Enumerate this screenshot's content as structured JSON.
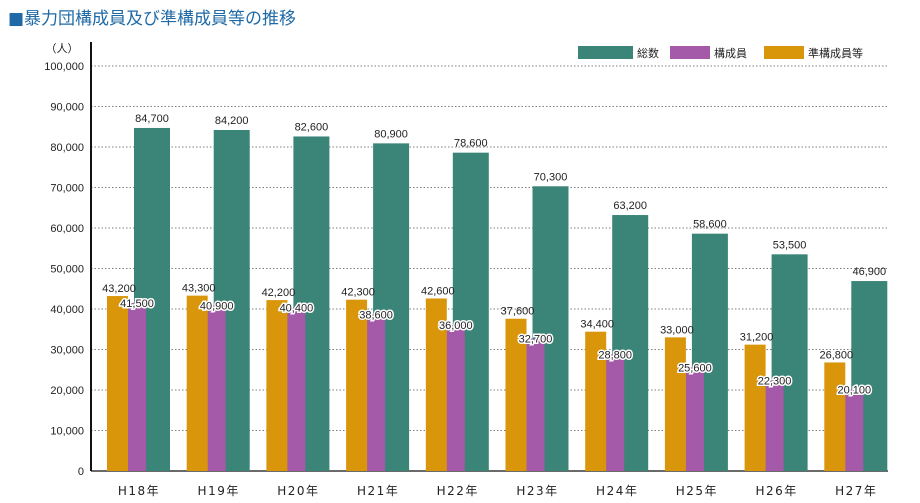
{
  "title": "■暴力団構成員及び準構成員等の推移",
  "chart_data": {
    "type": "bar",
    "title": "暴力団構成員及び準構成員等の推移",
    "ylabel": "（人）",
    "xlabel": "",
    "ylim": [
      0,
      100000
    ],
    "yticks": [
      "0",
      "10,000",
      "20,000",
      "30,000",
      "40,000",
      "50,000",
      "60,000",
      "70,000",
      "80,000",
      "90,000",
      "100,000"
    ],
    "ytick_values": [
      0,
      10000,
      20000,
      30000,
      40000,
      50000,
      60000,
      70000,
      80000,
      90000,
      100000
    ],
    "grid": true,
    "legend_position": "top-right",
    "categories": [
      "H18年",
      "H19年",
      "H20年",
      "H21年",
      "H22年",
      "H23年",
      "H24年",
      "H25年",
      "H26年",
      "H27年"
    ],
    "series": [
      {
        "name": "準構成員等",
        "color": "#d9960a",
        "values": [
          43200,
          43300,
          42200,
          42300,
          42600,
          37600,
          34400,
          33000,
          31200,
          26800
        ],
        "labels": [
          "43,200",
          "43,300",
          "42,200",
          "42,300",
          "42,600",
          "37,600",
          "34,400",
          "33,000",
          "31,200",
          "26,800"
        ]
      },
      {
        "name": "構成員",
        "color": "#a45aa8",
        "values": [
          41500,
          40900,
          40400,
          38600,
          36000,
          32700,
          28800,
          25600,
          22300,
          20100
        ],
        "labels": [
          "41,500",
          "40,900",
          "40,400",
          "38,600",
          "36,000",
          "32,700",
          "28,800",
          "25,600",
          "22,300",
          "20,100"
        ]
      },
      {
        "name": "総数",
        "color": "#3a8478",
        "values": [
          84700,
          84200,
          82600,
          80900,
          78600,
          70300,
          63200,
          58600,
          53500,
          46900
        ],
        "labels": [
          "84,700",
          "84,200",
          "82,600",
          "80,900",
          "78,600",
          "70,300",
          "63,200",
          "58,600",
          "53,500",
          "46,900"
        ]
      }
    ],
    "legend": [
      "総数",
      "構成員",
      "準構成員等"
    ]
  }
}
